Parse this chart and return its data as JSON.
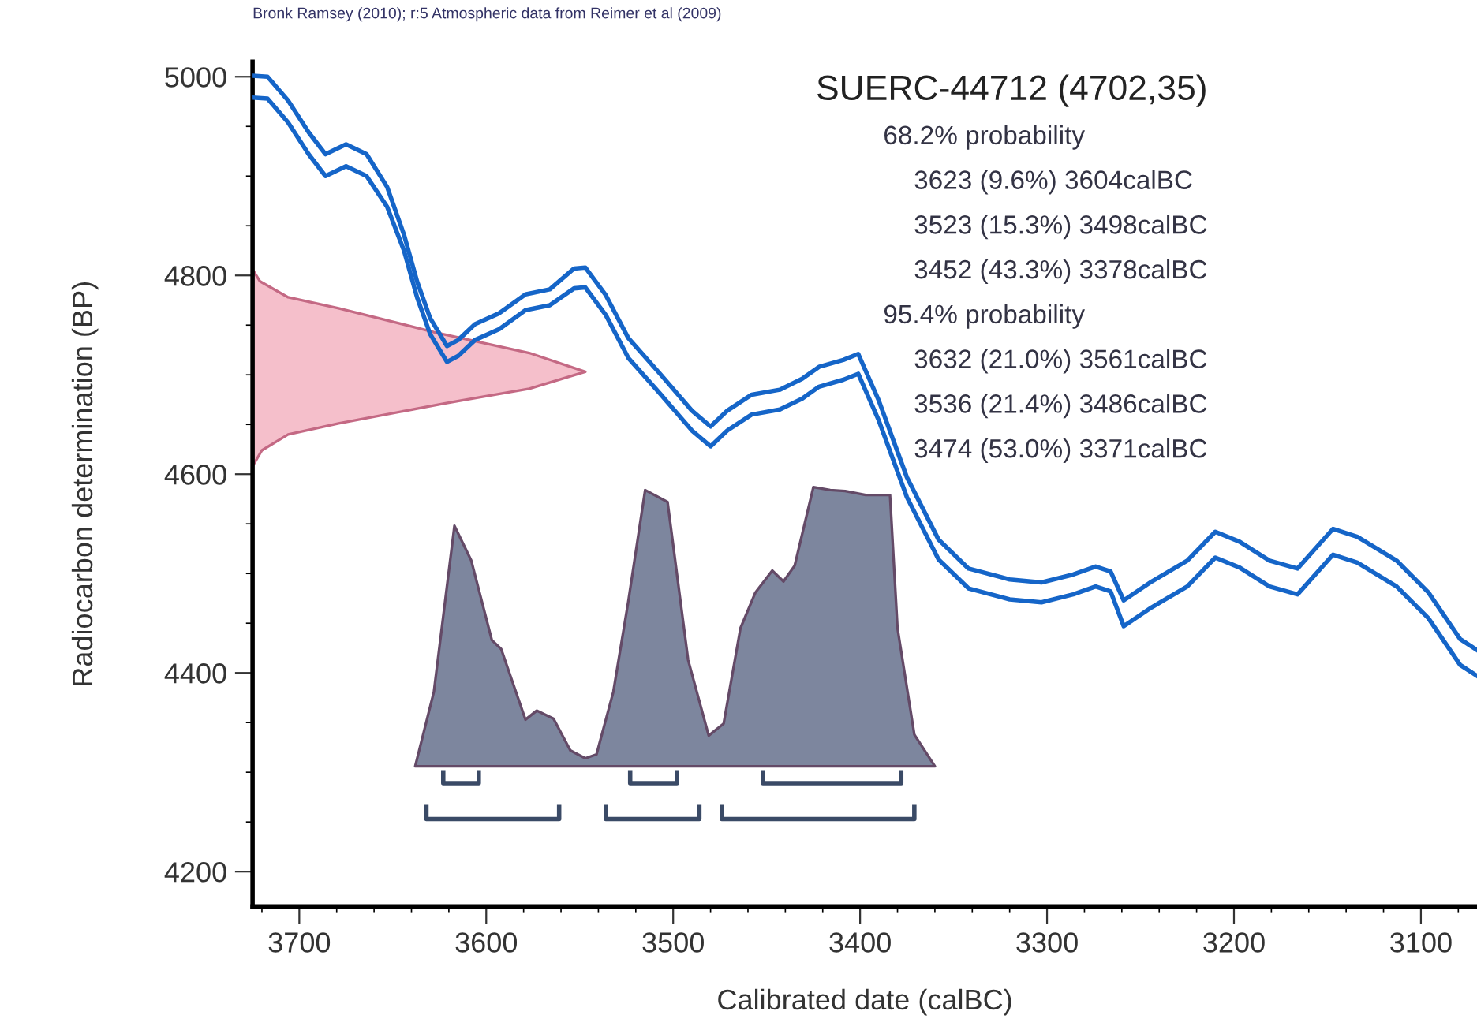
{
  "chart_data": {
    "type": "line",
    "title": "SUERC-44712 (4702,35)",
    "xlabel": "Calibrated date (calBC)",
    "ylabel": "Radiocarbon determination (BP)",
    "annotations": [
      "Bronk Ramsey (2010); r:5 Atmospheric data from Reimer et al (2009)",
      "68.2% probability",
      "3623 (9.6%) 3604calBC",
      "3523 (15.3%) 3498calBC",
      "3452 (43.3%) 3378calBC",
      "95.4% probability",
      "3632 (21.0%) 3561calBC",
      "3536 (21.4%) 3486calBC",
      "3474 (53.0%) 3371calBC"
    ],
    "xlim": [
      3725,
      3070
    ],
    "xticks": [
      3700,
      3600,
      3500,
      3400,
      3300,
      3200,
      3100
    ],
    "ylim": [
      4165,
      5015
    ],
    "yticks": [
      4200,
      4400,
      4600,
      4800,
      5000
    ],
    "grid": false,
    "legend": false,
    "series": [
      {
        "color": "#1565c8",
        "x": [
          3725,
          3717,
          3706,
          3695,
          3686,
          3675,
          3664,
          3653,
          3644,
          3637,
          3630,
          3621,
          3615,
          3606,
          3593,
          3579,
          3566,
          3553,
          3547,
          3536,
          3524,
          3507,
          3490,
          3480,
          3471,
          3458,
          3443,
          3431,
          3422,
          3409,
          3401,
          3390,
          3375,
          3358,
          3342,
          3320,
          3303,
          3286,
          3274,
          3266,
          3259,
          3244,
          3225,
          3210,
          3197,
          3181,
          3166,
          3147,
          3134,
          3113,
          3096,
          3079,
          3070
        ],
        "values": [
          5001,
          5000,
          4976,
          4944,
          4922,
          4932,
          4922,
          4889,
          4841,
          4794,
          4757,
          4729,
          4735,
          4751,
          4762,
          4781,
          4786,
          4807,
          4808,
          4780,
          4737,
          4701,
          4664,
          4648,
          4664,
          4680,
          4685,
          4696,
          4708,
          4715,
          4721,
          4674,
          4597,
          4534,
          4505,
          4494,
          4491,
          4499,
          4507,
          4502,
          4473,
          4492,
          4513,
          4542,
          4532,
          4513,
          4505,
          4545,
          4537,
          4513,
          4481,
          4434,
          4423
        ]
      },
      {
        "color": "#1565c8",
        "x": [
          3725,
          3717,
          3706,
          3695,
          3686,
          3675,
          3664,
          3653,
          3644,
          3637,
          3630,
          3621,
          3615,
          3606,
          3593,
          3579,
          3566,
          3553,
          3547,
          3536,
          3524,
          3507,
          3490,
          3480,
          3471,
          3458,
          3443,
          3431,
          3422,
          3409,
          3401,
          3390,
          3375,
          3358,
          3342,
          3320,
          3303,
          3286,
          3274,
          3266,
          3259,
          3244,
          3225,
          3210,
          3197,
          3181,
          3166,
          3147,
          3134,
          3113,
          3096,
          3079,
          3070
        ],
        "values": [
          4979,
          4978,
          4954,
          4922,
          4900,
          4910,
          4900,
          4869,
          4825,
          4778,
          4741,
          4713,
          4719,
          4735,
          4746,
          4765,
          4770,
          4787,
          4788,
          4760,
          4717,
          4681,
          4644,
          4628,
          4644,
          4660,
          4665,
          4676,
          4688,
          4695,
          4701,
          4654,
          4577,
          4514,
          4485,
          4474,
          4471,
          4479,
          4487,
          4482,
          4447,
          4466,
          4487,
          4516,
          4506,
          4487,
          4479,
          4519,
          4511,
          4487,
          4455,
          4408,
          4397
        ]
      },
      {
        "type": "area",
        "color": "#f5bfcb",
        "x": [
          3725,
          3725,
          3721,
          3706,
          3679,
          3628,
          3577,
          3547,
          3577,
          3623,
          3679,
          3706,
          3720,
          3725,
          3725
        ],
        "values": [
          4817,
          4806,
          4794,
          4778,
          4767,
          4743,
          4722,
          4703,
          4686,
          4671,
          4651,
          4640,
          4624,
          4608,
          4595
        ]
      },
      {
        "type": "area",
        "color": "#7d869e",
        "x": [
          3638,
          3628,
          3617,
          3608,
          3597,
          3592,
          3579,
          3573,
          3564,
          3555,
          3547,
          3541,
          3532,
          3524,
          3515,
          3503,
          3492,
          3481,
          3473,
          3464,
          3456,
          3447,
          3441,
          3435,
          3425,
          3416,
          3408,
          3397,
          3384,
          3380,
          3371,
          3360
        ],
        "values": [
          4306,
          4381,
          4548,
          4513,
          4433,
          4424,
          4353,
          4362,
          4354,
          4322,
          4314,
          4318,
          4381,
          4472,
          4584,
          4572,
          4413,
          4337,
          4349,
          4445,
          4481,
          4503,
          4492,
          4508,
          4587,
          4584,
          4583,
          4579,
          4579,
          4445,
          4338,
          4306
        ]
      },
      {
        "color": "#3a4a66",
        "x": [
          3623,
          3623,
          3604,
          3604,
          3560,
          3523,
          3523,
          3498,
          3498,
          3460,
          3452,
          3452,
          3378,
          3378
        ],
        "values": [
          4300,
          4289,
          4289,
          4300,
          null,
          4300,
          4289,
          4289,
          4300,
          null,
          4300,
          4289,
          4289,
          4300
        ]
      },
      {
        "color": "#3a4a66",
        "x": [
          3632,
          3632,
          3561,
          3561,
          3545,
          3536,
          3536,
          3486,
          3486,
          3480,
          3474,
          3474,
          3371,
          3371
        ],
        "values": [
          4265,
          4253,
          4253,
          4265,
          null,
          4265,
          4253,
          4253,
          4265,
          null,
          4265,
          4253,
          4253,
          4265
        ]
      }
    ]
  }
}
